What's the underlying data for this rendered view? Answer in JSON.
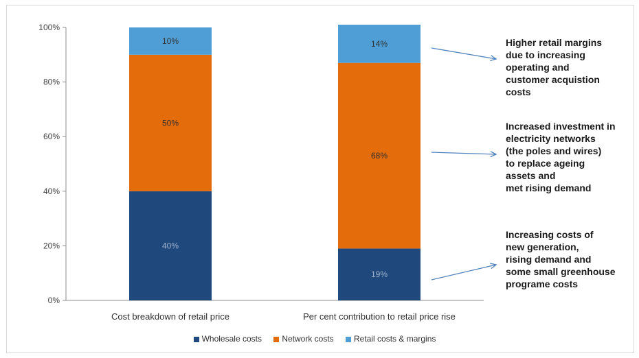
{
  "chart_data": {
    "type": "bar",
    "stacked": true,
    "percent": true,
    "categories": [
      "Cost breakdown of retail price",
      "Per cent contribution to retail price rise"
    ],
    "series": [
      {
        "name": "Wholesale costs",
        "values": [
          40,
          19
        ],
        "labels": [
          "40%",
          "19%"
        ],
        "color": "#1f497d"
      },
      {
        "name": "Network costs",
        "values": [
          50,
          68
        ],
        "labels": [
          "50%",
          "68%"
        ],
        "color": "#e46c0a"
      },
      {
        "name": "Retail costs & margins",
        "values": [
          10,
          14
        ],
        "labels": [
          "10%",
          "14%"
        ],
        "color": "#4f9fd6"
      }
    ],
    "yticks": [
      "0%",
      "20%",
      "40%",
      "60%",
      "80%",
      "100%"
    ],
    "ylim": [
      0,
      100
    ],
    "grid": false,
    "legend_position": "bottom",
    "annotations": [
      {
        "text": "Higher retail margins\ndue to increasing\noperating and\ncustomer acquistion\ncosts",
        "points_to": "Retail costs & margins"
      },
      {
        "text": "Increased investment in\nelectricity networks\n(the poles and wires)\nto replace ageing\nassets and\n met rising demand",
        "points_to": "Network costs"
      },
      {
        "text": "Increasing costs of\nnew generation,\nrising demand and\nsome small greenhouse\nprograme costs",
        "points_to": "Wholesale costs"
      }
    ]
  }
}
